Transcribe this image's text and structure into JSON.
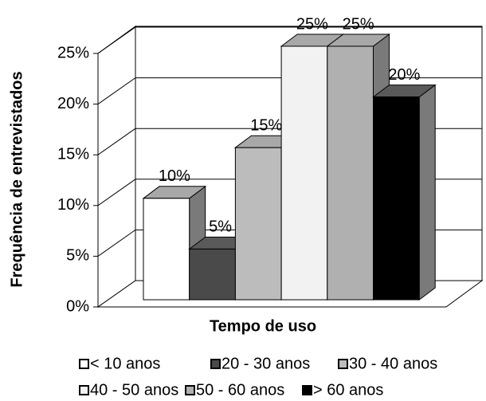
{
  "chart_data": {
    "type": "bar3d",
    "ylabel": "Frequência de entrevistados",
    "xlabel": "Tempo de uso",
    "categories": [
      null
    ],
    "ylim": [
      0,
      25
    ],
    "yticks": [
      {
        "value": 0,
        "label": "0%"
      },
      {
        "value": 5,
        "label": "5%"
      },
      {
        "value": 10,
        "label": "10%"
      },
      {
        "value": 15,
        "label": "15%"
      },
      {
        "value": 20,
        "label": "20%"
      },
      {
        "value": 25,
        "label": "25%"
      }
    ],
    "grid": true,
    "series": [
      {
        "name": "< 10 anos",
        "color": "#ffffff",
        "values": [
          10
        ],
        "value_labels": [
          "10%"
        ]
      },
      {
        "name": "20 - 30 anos",
        "color": "#4a4a4a",
        "values": [
          5
        ],
        "value_labels": [
          "5%"
        ]
      },
      {
        "name": "30 - 40 anos",
        "color": "#bcbcbc",
        "values": [
          15
        ],
        "value_labels": [
          "15%"
        ]
      },
      {
        "name": "40 - 50 anos",
        "color": "#f2f2f2",
        "values": [
          25
        ],
        "value_labels": [
          "25%"
        ]
      },
      {
        "name": "50 - 60 anos",
        "color": "#b0b0b0",
        "values": [
          25
        ],
        "value_labels": [
          "25%"
        ]
      },
      {
        "name": "> 60 anos",
        "color": "#000000",
        "values": [
          20
        ],
        "value_labels": [
          "20%"
        ]
      }
    ]
  }
}
